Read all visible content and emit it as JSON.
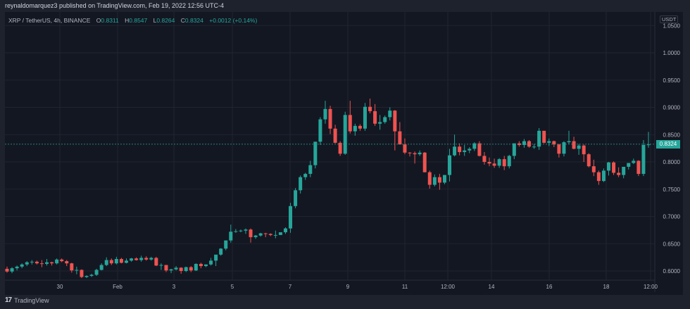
{
  "header": {
    "published_line": "reynaldomarquez3 published on TradingView.com, Feb 19, 2022 12:56 UTC-4"
  },
  "legend": {
    "symbol": "XRP / TetherUS, 4h, BINANCE",
    "open_label": "O",
    "open": "0.8311",
    "high_label": "H",
    "high": "0.8547",
    "low_label": "L",
    "low": "0.8264",
    "close_label": "C",
    "close": "0.8324",
    "change": "+0.0012 (+0.14%)"
  },
  "price_axis": {
    "currency": "USDT",
    "current_price": "0.8324",
    "ticks": [
      "1.0500",
      "1.0000",
      "0.9500",
      "0.9000",
      "0.8500",
      "0.8000",
      "0.7500",
      "0.7000",
      "0.6500",
      "0.6000"
    ]
  },
  "time_axis": {
    "ticks": [
      "30",
      "Feb",
      "3",
      "5",
      "7",
      "9",
      "11",
      "12:00",
      "14",
      "16",
      "18",
      "12:00"
    ]
  },
  "footer": {
    "brand": "TradingView",
    "logo": "17"
  },
  "colors": {
    "up": "#26a69a",
    "down": "#ef5350",
    "background": "#131722",
    "frame": "#1e222d",
    "grid": "#1f2430"
  },
  "chart_data": {
    "type": "candlestick",
    "title": "XRP / TetherUS, 4h, BINANCE",
    "xlabel": "",
    "ylabel": "USDT",
    "ylim": [
      0.59,
      1.055
    ],
    "x_ticks": [
      "30",
      "Feb",
      "3",
      "5",
      "7",
      "9",
      "11",
      "12:00",
      "14",
      "16",
      "18",
      "12:00"
    ],
    "y_ticks": [
      0.6,
      0.65,
      0.7,
      0.75,
      0.8,
      0.85,
      0.9,
      0.95,
      1.0,
      1.05
    ],
    "last_price": 0.8324,
    "candles_ohlc": [
      [
        0.604,
        0.608,
        0.597,
        0.599
      ],
      [
        0.599,
        0.607,
        0.596,
        0.605
      ],
      [
        0.605,
        0.61,
        0.601,
        0.608
      ],
      [
        0.608,
        0.614,
        0.605,
        0.612
      ],
      [
        0.612,
        0.618,
        0.609,
        0.616
      ],
      [
        0.616,
        0.62,
        0.612,
        0.617
      ],
      [
        0.617,
        0.619,
        0.612,
        0.614
      ],
      [
        0.614,
        0.62,
        0.607,
        0.613
      ],
      [
        0.613,
        0.622,
        0.61,
        0.616
      ],
      [
        0.616,
        0.617,
        0.61,
        0.614
      ],
      [
        0.614,
        0.623,
        0.612,
        0.621
      ],
      [
        0.621,
        0.623,
        0.616,
        0.618
      ],
      [
        0.618,
        0.62,
        0.609,
        0.614
      ],
      [
        0.614,
        0.615,
        0.597,
        0.601
      ],
      [
        0.601,
        0.608,
        0.594,
        0.602
      ],
      [
        0.602,
        0.603,
        0.587,
        0.589
      ],
      [
        0.589,
        0.592,
        0.587,
        0.591
      ],
      [
        0.591,
        0.595,
        0.589,
        0.593
      ],
      [
        0.593,
        0.604,
        0.591,
        0.602
      ],
      [
        0.602,
        0.614,
        0.601,
        0.611
      ],
      [
        0.611,
        0.625,
        0.609,
        0.62
      ],
      [
        0.62,
        0.623,
        0.611,
        0.614
      ],
      [
        0.614,
        0.626,
        0.612,
        0.622
      ],
      [
        0.622,
        0.624,
        0.614,
        0.615
      ],
      [
        0.615,
        0.623,
        0.614,
        0.619
      ],
      [
        0.619,
        0.624,
        0.617,
        0.623
      ],
      [
        0.623,
        0.625,
        0.619,
        0.62
      ],
      [
        0.62,
        0.628,
        0.617,
        0.624
      ],
      [
        0.624,
        0.627,
        0.619,
        0.621
      ],
      [
        0.621,
        0.626,
        0.619,
        0.624
      ],
      [
        0.624,
        0.626,
        0.609,
        0.61
      ],
      [
        0.61,
        0.614,
        0.602,
        0.611
      ],
      [
        0.611,
        0.611,
        0.598,
        0.601
      ],
      [
        0.601,
        0.604,
        0.596,
        0.603
      ],
      [
        0.603,
        0.609,
        0.601,
        0.606
      ],
      [
        0.606,
        0.607,
        0.595,
        0.6
      ],
      [
        0.6,
        0.608,
        0.598,
        0.607
      ],
      [
        0.607,
        0.609,
        0.598,
        0.601
      ],
      [
        0.601,
        0.614,
        0.6,
        0.613
      ],
      [
        0.613,
        0.615,
        0.605,
        0.609
      ],
      [
        0.609,
        0.612,
        0.607,
        0.612
      ],
      [
        0.612,
        0.624,
        0.61,
        0.619
      ],
      [
        0.619,
        0.625,
        0.609,
        0.63
      ],
      [
        0.63,
        0.642,
        0.628,
        0.641
      ],
      [
        0.641,
        0.656,
        0.638,
        0.656
      ],
      [
        0.656,
        0.685,
        0.652,
        0.672
      ],
      [
        0.672,
        0.677,
        0.67,
        0.673
      ],
      [
        0.673,
        0.676,
        0.671,
        0.674
      ],
      [
        0.674,
        0.678,
        0.668,
        0.676
      ],
      [
        0.676,
        0.678,
        0.652,
        0.662
      ],
      [
        0.662,
        0.666,
        0.659,
        0.665
      ],
      [
        0.665,
        0.67,
        0.663,
        0.669
      ],
      [
        0.669,
        0.67,
        0.662,
        0.668
      ],
      [
        0.668,
        0.669,
        0.664,
        0.666
      ],
      [
        0.666,
        0.674,
        0.66,
        0.666
      ],
      [
        0.666,
        0.671,
        0.666,
        0.671
      ],
      [
        0.671,
        0.68,
        0.668,
        0.678
      ],
      [
        0.678,
        0.725,
        0.67,
        0.719
      ],
      [
        0.719,
        0.752,
        0.715,
        0.748
      ],
      [
        0.748,
        0.775,
        0.742,
        0.772
      ],
      [
        0.772,
        0.78,
        0.767,
        0.778
      ],
      [
        0.778,
        0.802,
        0.772,
        0.794
      ],
      [
        0.794,
        0.835,
        0.788,
        0.837
      ],
      [
        0.837,
        0.882,
        0.831,
        0.878
      ],
      [
        0.878,
        0.912,
        0.87,
        0.897
      ],
      [
        0.897,
        0.903,
        0.851,
        0.861
      ],
      [
        0.861,
        0.868,
        0.834,
        0.835
      ],
      [
        0.835,
        0.838,
        0.811,
        0.815
      ],
      [
        0.815,
        0.892,
        0.813,
        0.886
      ],
      [
        0.886,
        0.912,
        0.852,
        0.856
      ],
      [
        0.856,
        0.87,
        0.848,
        0.866
      ],
      [
        0.866,
        0.869,
        0.857,
        0.861
      ],
      [
        0.861,
        0.908,
        0.857,
        0.901
      ],
      [
        0.901,
        0.916,
        0.889,
        0.893
      ],
      [
        0.893,
        0.906,
        0.866,
        0.87
      ],
      [
        0.87,
        0.886,
        0.859,
        0.873
      ],
      [
        0.873,
        0.885,
        0.87,
        0.882
      ],
      [
        0.882,
        0.9,
        0.876,
        0.894
      ],
      [
        0.894,
        0.895,
        0.821,
        0.856
      ],
      [
        0.856,
        0.873,
        0.845,
        0.832
      ],
      [
        0.832,
        0.843,
        0.814,
        0.817
      ],
      [
        0.817,
        0.818,
        0.81,
        0.816
      ],
      [
        0.816,
        0.819,
        0.797,
        0.814
      ],
      [
        0.814,
        0.821,
        0.811,
        0.817
      ],
      [
        0.817,
        0.818,
        0.781,
        0.781
      ],
      [
        0.781,
        0.784,
        0.751,
        0.758
      ],
      [
        0.758,
        0.777,
        0.755,
        0.772
      ],
      [
        0.772,
        0.778,
        0.749,
        0.762
      ],
      [
        0.762,
        0.776,
        0.759,
        0.776
      ],
      [
        0.776,
        0.824,
        0.764,
        0.812
      ],
      [
        0.812,
        0.85,
        0.81,
        0.828
      ],
      [
        0.828,
        0.834,
        0.812,
        0.818
      ],
      [
        0.818,
        0.831,
        0.811,
        0.821
      ],
      [
        0.821,
        0.827,
        0.816,
        0.824
      ],
      [
        0.824,
        0.836,
        0.82,
        0.834
      ],
      [
        0.834,
        0.838,
        0.81,
        0.811
      ],
      [
        0.811,
        0.818,
        0.795,
        0.8
      ],
      [
        0.8,
        0.808,
        0.792,
        0.797
      ],
      [
        0.797,
        0.806,
        0.789,
        0.793
      ],
      [
        0.793,
        0.807,
        0.789,
        0.805
      ],
      [
        0.805,
        0.811,
        0.785,
        0.792
      ],
      [
        0.792,
        0.813,
        0.788,
        0.811
      ],
      [
        0.811,
        0.834,
        0.805,
        0.834
      ],
      [
        0.834,
        0.838,
        0.828,
        0.831
      ],
      [
        0.831,
        0.842,
        0.826,
        0.838
      ],
      [
        0.838,
        0.84,
        0.826,
        0.828
      ],
      [
        0.828,
        0.833,
        0.824,
        0.828
      ],
      [
        0.828,
        0.862,
        0.822,
        0.857
      ],
      [
        0.857,
        0.857,
        0.834,
        0.835
      ],
      [
        0.835,
        0.843,
        0.829,
        0.838
      ],
      [
        0.838,
        0.839,
        0.827,
        0.832
      ],
      [
        0.832,
        0.833,
        0.808,
        0.815
      ],
      [
        0.815,
        0.838,
        0.81,
        0.836
      ],
      [
        0.836,
        0.857,
        0.833,
        0.838
      ],
      [
        0.838,
        0.846,
        0.823,
        0.824
      ],
      [
        0.824,
        0.833,
        0.813,
        0.83
      ],
      [
        0.83,
        0.832,
        0.8,
        0.814
      ],
      [
        0.814,
        0.816,
        0.79,
        0.792
      ],
      [
        0.792,
        0.804,
        0.774,
        0.781
      ],
      [
        0.781,
        0.784,
        0.758,
        0.765
      ],
      [
        0.765,
        0.788,
        0.763,
        0.784
      ],
      [
        0.784,
        0.8,
        0.775,
        0.799
      ],
      [
        0.799,
        0.801,
        0.776,
        0.78
      ],
      [
        0.78,
        0.79,
        0.772,
        0.776
      ],
      [
        0.776,
        0.789,
        0.77,
        0.791
      ],
      [
        0.791,
        0.798,
        0.786,
        0.798
      ],
      [
        0.798,
        0.806,
        0.796,
        0.802
      ],
      [
        0.802,
        0.803,
        0.774,
        0.778
      ],
      [
        0.778,
        0.84,
        0.774,
        0.831
      ],
      [
        0.831,
        0.855,
        0.826,
        0.832
      ]
    ]
  }
}
